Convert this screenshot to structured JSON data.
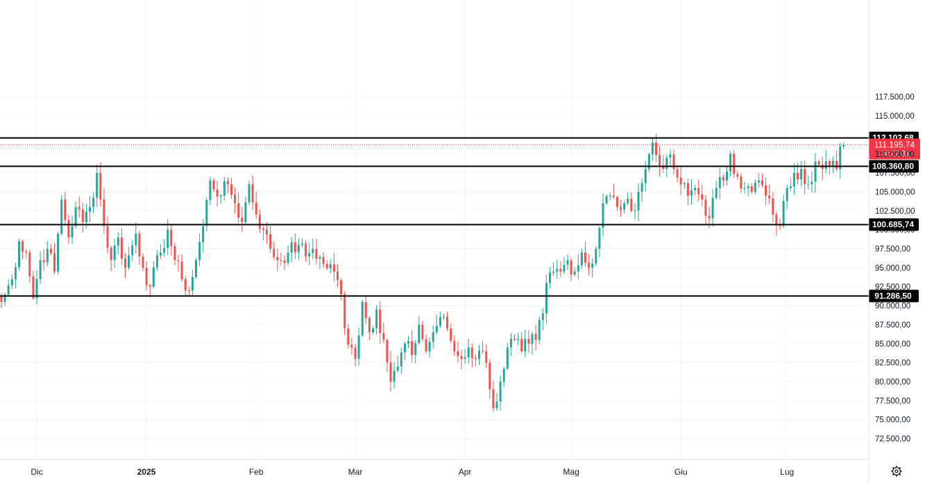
{
  "chart_data": {
    "type": "candlestick",
    "y_axis": {
      "position": "right",
      "ylim": [
        71000,
        119000
      ],
      "ticks": [
        72500,
        75000,
        77500,
        80000,
        82500,
        85000,
        87500,
        90000,
        92500,
        95000,
        97500,
        100000,
        102500,
        105000,
        107500,
        110000,
        115000,
        117500
      ],
      "tick_labels": [
        "72.500,00",
        "75.000,00",
        "77.500,00",
        "80.000,00",
        "82.500,00",
        "85.000,00",
        "87.500,00",
        "90.000,00",
        "92.500,00",
        "95.000,00",
        "97.500,00",
        "100.000,00",
        "102.500,00",
        "105.000,00",
        "107.500,00",
        "110.000,00",
        "115.000,00",
        "117.500,00"
      ]
    },
    "x_axis": {
      "labels": [
        {
          "text": "Dic",
          "index": 10,
          "bold": false
        },
        {
          "text": "2025",
          "index": 41,
          "bold": true
        },
        {
          "text": "Feb",
          "index": 72,
          "bold": false
        },
        {
          "text": "Mar",
          "index": 100,
          "bold": false
        },
        {
          "text": "Apr",
          "index": 131,
          "bold": false
        },
        {
          "text": "Mag",
          "index": 161,
          "bold": false
        },
        {
          "text": "Giu",
          "index": 192,
          "bold": false
        },
        {
          "text": "Lug",
          "index": 222,
          "bold": false
        }
      ]
    },
    "grid": true,
    "up_color": "#26a69a",
    "down_color": "#ef5350",
    "horizontal_levels": [
      {
        "value": 112102.68,
        "label": "112.102,68"
      },
      {
        "value": 108360.8,
        "label": "108.360,80"
      },
      {
        "value": 100685.74,
        "label": "100.685,74"
      },
      {
        "value": 91286.5,
        "label": "91.286,50"
      }
    ],
    "current_price": {
      "value": 111195.74,
      "label": "111.195,74",
      "countdown": "14:22:31",
      "color": "#f23645"
    },
    "anchors": [
      [
        0,
        90500
      ],
      [
        3,
        93500
      ],
      [
        5,
        98500
      ],
      [
        7,
        97000
      ],
      [
        9,
        91000
      ],
      [
        11,
        96000
      ],
      [
        13,
        97500
      ],
      [
        15,
        94500
      ],
      [
        17,
        104000
      ],
      [
        19,
        99000
      ],
      [
        21,
        103000
      ],
      [
        23,
        101000
      ],
      [
        25,
        103000
      ],
      [
        27,
        107500
      ],
      [
        29,
        100500
      ],
      [
        31,
        96000
      ],
      [
        33,
        99000
      ],
      [
        35,
        95000
      ],
      [
        38,
        99500
      ],
      [
        40,
        95000
      ],
      [
        42,
        92500
      ],
      [
        45,
        97000
      ],
      [
        47,
        100000
      ],
      [
        49,
        96000
      ],
      [
        51,
        93500
      ],
      [
        53,
        92000
      ],
      [
        55,
        96000
      ],
      [
        57,
        100500
      ],
      [
        59,
        106500
      ],
      [
        62,
        104500
      ],
      [
        64,
        106000
      ],
      [
        66,
        103500
      ],
      [
        68,
        101000
      ],
      [
        70,
        106000
      ],
      [
        72,
        102000
      ],
      [
        74,
        100000
      ],
      [
        76,
        97500
      ],
      [
        78,
        96000
      ],
      [
        81,
        97000
      ],
      [
        84,
        98000
      ],
      [
        86,
        96500
      ],
      [
        88,
        97500
      ],
      [
        91,
        95500
      ],
      [
        94,
        94500
      ],
      [
        96,
        91500
      ],
      [
        97,
        87000
      ],
      [
        99,
        84500
      ],
      [
        100,
        83000
      ],
      [
        102,
        90500
      ],
      [
        104,
        86500
      ],
      [
        106,
        89500
      ],
      [
        108,
        85500
      ],
      [
        110,
        80000
      ],
      [
        112,
        82000
      ],
      [
        114,
        85000
      ],
      [
        116,
        83500
      ],
      [
        118,
        87500
      ],
      [
        120,
        84000
      ],
      [
        122,
        86500
      ],
      [
        124,
        88500
      ],
      [
        126,
        87000
      ],
      [
        128,
        84000
      ],
      [
        130,
        83000
      ],
      [
        132,
        84500
      ],
      [
        134,
        83000
      ],
      [
        136,
        84000
      ],
      [
        137,
        82500
      ],
      [
        138,
        79000
      ],
      [
        139,
        76500
      ],
      [
        141,
        80000
      ],
      [
        143,
        84500
      ],
      [
        145,
        85500
      ],
      [
        147,
        84000
      ],
      [
        149,
        85000
      ],
      [
        151,
        85500
      ],
      [
        153,
        89000
      ],
      [
        154,
        93000
      ],
      [
        156,
        94500
      ],
      [
        158,
        94500
      ],
      [
        160,
        96000
      ],
      [
        162,
        94500
      ],
      [
        164,
        97000
      ],
      [
        166,
        95000
      ],
      [
        168,
        97500
      ],
      [
        170,
        103500
      ],
      [
        172,
        104500
      ],
      [
        174,
        103000
      ],
      [
        176,
        103500
      ],
      [
        178,
        102500
      ],
      [
        180,
        105000
      ],
      [
        182,
        108000
      ],
      [
        184,
        111500
      ],
      [
        186,
        108500
      ],
      [
        188,
        109500
      ],
      [
        190,
        108000
      ],
      [
        192,
        106000
      ],
      [
        194,
        104500
      ],
      [
        196,
        105500
      ],
      [
        198,
        104000
      ],
      [
        200,
        101500
      ],
      [
        202,
        105500
      ],
      [
        204,
        106500
      ],
      [
        206,
        110000
      ],
      [
        208,
        107000
      ],
      [
        210,
        105500
      ],
      [
        212,
        105000
      ],
      [
        214,
        106500
      ],
      [
        216,
        104500
      ],
      [
        218,
        102000
      ],
      [
        220,
        100500
      ],
      [
        222,
        105500
      ],
      [
        224,
        107500
      ],
      [
        226,
        108000
      ],
      [
        228,
        106000
      ],
      [
        230,
        109000
      ],
      [
        232,
        108000
      ],
      [
        234,
        108500
      ],
      [
        236,
        108000
      ],
      [
        237,
        111000
      ],
      [
        238,
        111196
      ]
    ]
  }
}
